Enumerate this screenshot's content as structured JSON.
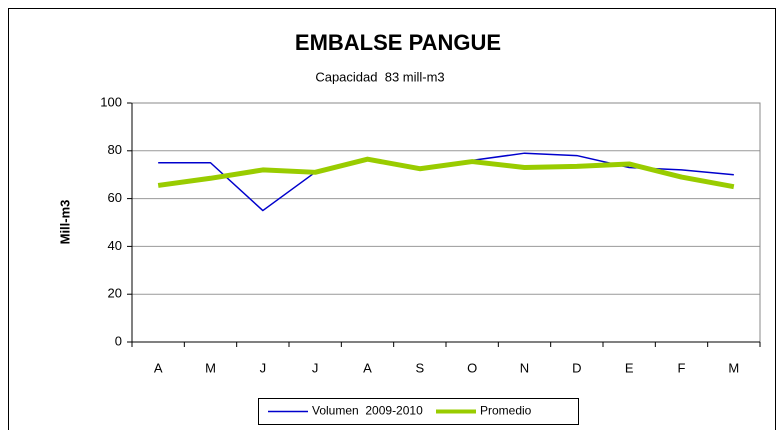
{
  "chart_data": {
    "type": "line",
    "title": "EMBALSE PANGUE",
    "subtitle": "Capacidad  83 mill-m3",
    "y_label": "Mill-m3",
    "categories": [
      "A",
      "M",
      "J",
      "J",
      "A",
      "S",
      "O",
      "N",
      "D",
      "E",
      "F",
      "M"
    ],
    "series": [
      {
        "name": "Volumen  2009-2010",
        "color": "#0000cc",
        "width": 1.5,
        "values": [
          75,
          75,
          55,
          71,
          77,
          72,
          76,
          79,
          78,
          73,
          72,
          70
        ]
      },
      {
        "name": "Promedio",
        "color": "#99cc00",
        "width": 5,
        "values": [
          65.5,
          68.5,
          72,
          71,
          76.5,
          72.5,
          75.5,
          73,
          73.5,
          74.5,
          69,
          65
        ]
      }
    ],
    "ylim": [
      0,
      100
    ],
    "yticks": [
      0,
      20,
      40,
      60,
      80,
      100
    ],
    "grid": true,
    "legend": "bottom"
  }
}
